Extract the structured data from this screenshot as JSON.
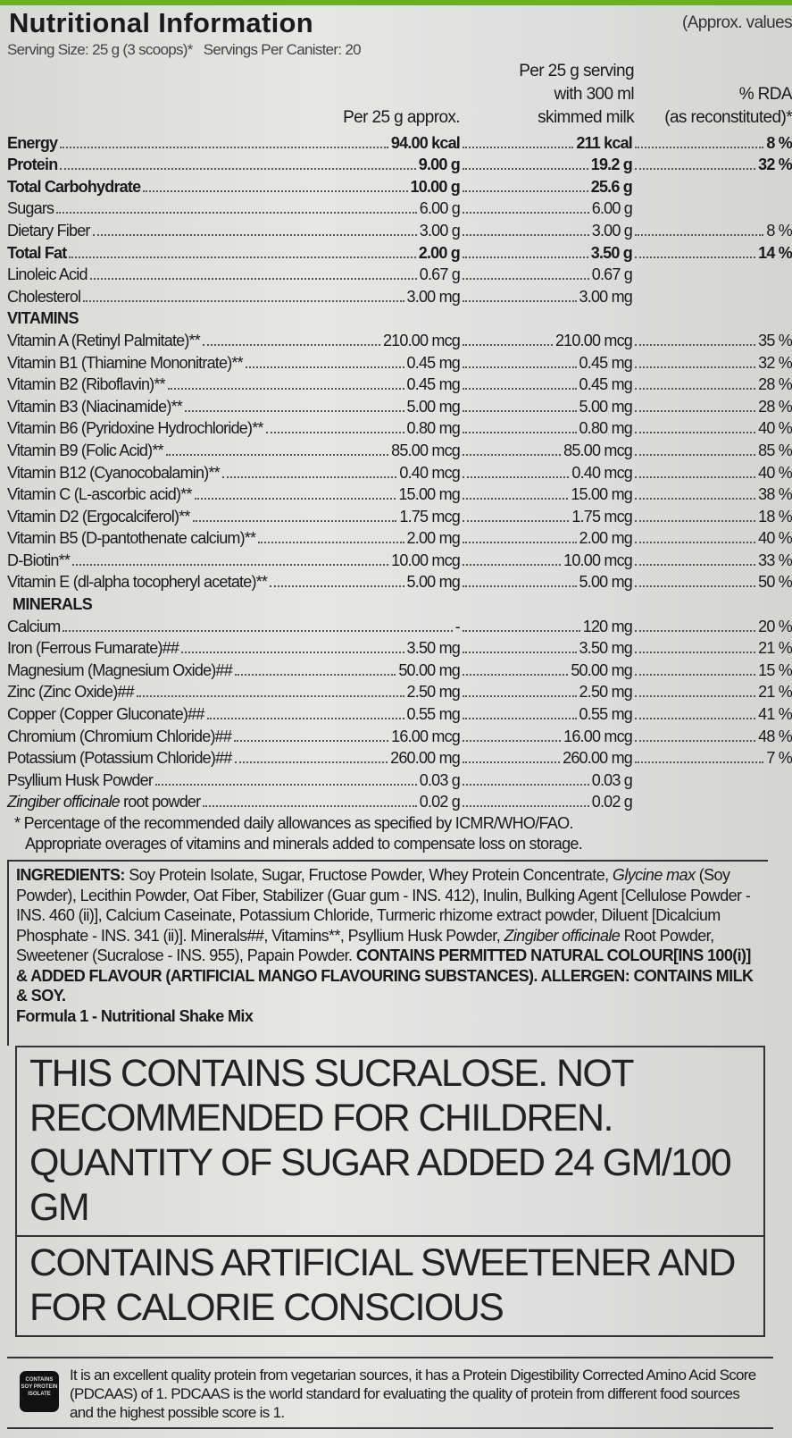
{
  "title": "Nutritional Information",
  "approx_note": "(Approx. values",
  "serving": "Serving Size: 25 g (3 scoops)*   Servings Per Canister: 20",
  "headers": {
    "per25": "Per 25 g approx.",
    "milk1": "Per 25 g serving",
    "milk2": "with 300 ml",
    "milk3": "skimmed milk",
    "rda1": "% RDA",
    "rda2": "(as reconstituted)*"
  },
  "nutrients": [
    {
      "name": "Energy",
      "per25": "94.00 kcal",
      "milk": "211 kcal",
      "rda": "8 %",
      "bold": true
    },
    {
      "name": "Protein",
      "per25": "9.00 g",
      "milk": "19.2 g",
      "rda": "32 %",
      "bold": true
    },
    {
      "name": "Total Carbohydrate",
      "per25": "10.00 g",
      "milk": "25.6 g",
      "rda": "",
      "bold": true
    },
    {
      "name": "Sugars",
      "per25": "6.00 g",
      "milk": "6.00 g",
      "rda": ""
    },
    {
      "name": "Dietary Fiber",
      "per25": "3.00 g",
      "milk": "3.00 g",
      "rda": "8 %"
    },
    {
      "name": "Total Fat",
      "per25": "2.00 g",
      "milk": "3.50 g",
      "rda": "14 %",
      "bold": true
    },
    {
      "name": "Linoleic Acid",
      "per25": "0.67 g",
      "milk": "0.67 g",
      "rda": ""
    },
    {
      "name": "Cholesterol",
      "per25": "3.00 mg",
      "milk": "3.00 mg",
      "rda": ""
    }
  ],
  "vitamins_heading": "VITAMINS",
  "vitamins": [
    {
      "name": "Vitamin A (Retinyl Palmitate)**",
      "per25": "210.00 mcg",
      "milk": "210.00 mcg",
      "rda": "35 %"
    },
    {
      "name": "Vitamin B1 (Thiamine Mononitrate)**",
      "per25": "0.45 mg",
      "milk": "0.45 mg",
      "rda": "32 %"
    },
    {
      "name": "Vitamin B2 (Riboflavin)**",
      "per25": "0.45 mg",
      "milk": "0.45 mg",
      "rda": "28 %"
    },
    {
      "name": "Vitamin B3 (Niacinamide)**",
      "per25": "5.00 mg",
      "milk": "5.00 mg",
      "rda": "28 %"
    },
    {
      "name": "Vitamin B6 (Pyridoxine Hydrochloride)**",
      "per25": "0.80 mg",
      "milk": "0.80 mg",
      "rda": "40 %"
    },
    {
      "name": "Vitamin B9 (Folic Acid)**",
      "per25": "85.00 mcg",
      "milk": "85.00 mcg",
      "rda": "85 %"
    },
    {
      "name": "Vitamin B12 (Cyanocobalamin)**",
      "per25": "0.40 mcg",
      "milk": "0.40 mcg",
      "rda": "40 %"
    },
    {
      "name": "Vitamin C (L-ascorbic acid)**",
      "per25": "15.00 mg",
      "milk": "15.00 mg",
      "rda": "38 %"
    },
    {
      "name": "Vitamin D2 (Ergocalciferol)**",
      "per25": "1.75 mcg",
      "milk": "1.75 mcg",
      "rda": "18 %"
    },
    {
      "name": "Vitamin B5 (D-pantothenate calcium)**",
      "per25": "2.00 mg",
      "milk": "2.00 mg",
      "rda": "40 %"
    },
    {
      "name": "D-Biotin**",
      "per25": "10.00 mcg",
      "milk": "10.00 mcg",
      "rda": "33 %"
    },
    {
      "name": "Vitamin E (dl-alpha tocopheryl acetate)**",
      "per25": "5.00 mg",
      "milk": "5.00 mg",
      "rda": "50 %"
    }
  ],
  "minerals_heading": "MINERALS",
  "minerals": [
    {
      "name": "Calcium",
      "per25": "-",
      "milk": "120 mg",
      "rda": "20 %"
    },
    {
      "name": "Iron (Ferrous Fumarate)##",
      "per25": "3.50 mg",
      "milk": "3.50 mg",
      "rda": "21 %"
    },
    {
      "name": "Magnesium (Magnesium Oxide)##",
      "per25": "50.00 mg",
      "milk": "50.00 mg",
      "rda": "15 %"
    },
    {
      "name": "Zinc (Zinc Oxide)##",
      "per25": "2.50 mg",
      "milk": "2.50 mg",
      "rda": "21 %"
    },
    {
      "name": "Copper (Copper Gluconate)##",
      "per25": "0.55 mg",
      "milk": "0.55 mg",
      "rda": "41 %"
    },
    {
      "name": "Chromium (Chromium Chloride)##",
      "per25": "16.00 mcg",
      "milk": "16.00 mcg",
      "rda": "48 %"
    },
    {
      "name": "Potassium (Potassium Chloride)##",
      "per25": "260.00 mg",
      "milk": "260.00 mg",
      "rda": "7 %"
    },
    {
      "name": "Psyllium Husk Powder",
      "per25": "0.03 g",
      "milk": "0.03 g",
      "rda": ""
    },
    {
      "name": "Zingiber officinale root powder",
      "per25": "0.02 g",
      "milk": "0.02 g",
      "rda": "",
      "italic_part": "Zingiber officinale"
    }
  ],
  "footnote1": "* Percentage of the recommended daily allowances as specified by ICMR/WHO/FAO.",
  "footnote2": "Appropriate overages of vitamins and minerals added to compensate loss on storage.",
  "ingredients_label": "INGREDIENTS:",
  "ingredients_text": " Soy Protein Isolate, Sugar, Fructose Powder, Whey Protein Concentrate, Glycine max (Soy Powder), Lecithin Powder, Oat Fiber, Stabilizer (Guar gum - INS. 412), Inulin, Bulking Agent [Cellulose Powder - INS. 460 (ii)], Calcium Caseinate, Potassium Chloride, Turmeric rhizome extract powder, Diluent [Dicalcium Phosphate - INS. 341 (ii)]. Minerals##, Vitamins**, Psyllium Husk Powder, Zingiber officinale Root Powder, Sweetener (Sucralose - INS. 955), Papain Powder. ",
  "ingredients_bold": "CONTAINS PERMITTED NATURAL COLOUR[INS 100(i)] & ADDED FLAVOUR (ARTIFICIAL MANGO FLAVOURING SUBSTANCES). ALLERGEN: CONTAINS MILK & SOY.",
  "product_name": "Formula 1 - Nutritional Shake Mix",
  "warning1": "THIS CONTAINS SUCRALOSE. NOT RECOMMENDED FOR CHILDREN. QUANTITY OF SUGAR ADDED 24 GM/100 GM",
  "warning2": "CONTAINS ARTIFICIAL SWEETENER AND FOR CALORIE CONSCIOUS",
  "badge": "CONTAINS SOY PROTEIN ISOLATE",
  "pdcaas_text": "It is an excellent quality protein from vegetarian sources, it has a Protein Digestibility Corrected Amino Acid Score (PDCAAS) of 1. PDCAAS is the world standard for evaluating the quality of protein from different food sources and the highest possible score is 1."
}
